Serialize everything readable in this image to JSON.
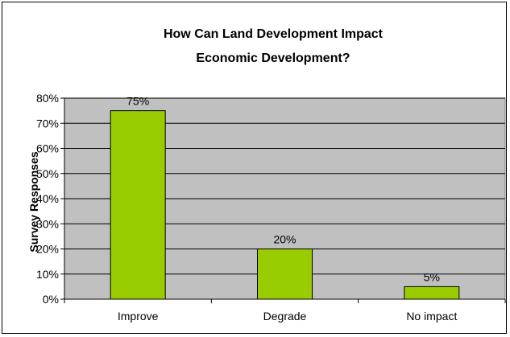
{
  "chart_data": {
    "type": "bar",
    "title": [
      "How Can Land Development Impact",
      "Economic Development?"
    ],
    "xlabel": "",
    "ylabel": "Survey Responses",
    "categories": [
      "Improve",
      "Degrade",
      "No impact"
    ],
    "values": [
      75,
      20,
      5
    ],
    "data_labels": [
      "75%",
      "20%",
      "5%"
    ],
    "ylim": [
      0,
      80
    ],
    "yticks": [
      0,
      10,
      20,
      30,
      40,
      50,
      60,
      70,
      80
    ],
    "ytick_labels": [
      "0%",
      "10%",
      "20%",
      "30%",
      "40%",
      "50%",
      "60%",
      "70%",
      "80%"
    ],
    "grid": "horizontal",
    "legend": "none",
    "colors": {
      "bar_fill": "#99CC00",
      "bar_stroke": "#000000",
      "plot_background": "#C0C0C0",
      "gridline": "#000000"
    }
  }
}
